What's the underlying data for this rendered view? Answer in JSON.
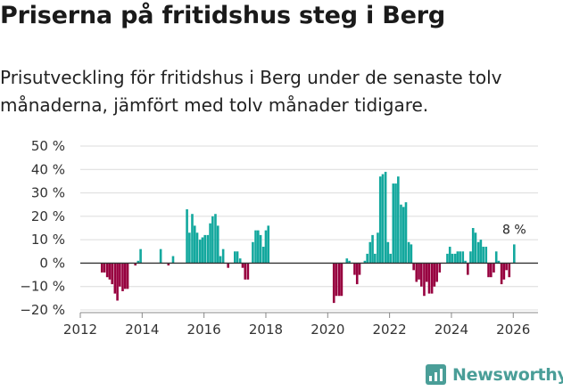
{
  "header": {
    "title": "Priserna på fritidshus steg i Berg",
    "subtitle": "Prisutveckling för fritidshus i Berg under de senaste tolv månaderna, jämfört med tolv månader tidigare."
  },
  "brand": {
    "name": "Newsworthy",
    "icon": "newsworthy-logo-icon",
    "color": "#4a9e98"
  },
  "chart_data": {
    "type": "bar",
    "title": "Priserna på fritidshus steg i Berg",
    "xlabel": "",
    "ylabel": "",
    "ylim": [
      -20,
      50
    ],
    "xlim": [
      2012,
      2026.8
    ],
    "y_ticks": [
      {
        "value": -20,
        "label": "−20 %"
      },
      {
        "value": -10,
        "label": "−10 %"
      },
      {
        "value": 0,
        "label": "0 %"
      },
      {
        "value": 10,
        "label": "10 %"
      },
      {
        "value": 20,
        "label": "20 %"
      },
      {
        "value": 30,
        "label": "30 %"
      },
      {
        "value": 40,
        "label": "40 %"
      },
      {
        "value": 50,
        "label": "50 %"
      }
    ],
    "x_ticks": [
      {
        "value": 2012,
        "label": "2012"
      },
      {
        "value": 2014,
        "label": "2014"
      },
      {
        "value": 2016,
        "label": "2016"
      },
      {
        "value": 2018,
        "label": "2018"
      },
      {
        "value": 2020,
        "label": "2020"
      },
      {
        "value": 2022,
        "label": "2022"
      },
      {
        "value": 2024,
        "label": "2024"
      },
      {
        "value": 2026,
        "label": "2026"
      }
    ],
    "colors": {
      "positive": "#13a89e",
      "negative": "#97003f",
      "zero_line": "#333333"
    },
    "last_value_label": "8 %",
    "grid": true,
    "series": [
      {
        "name": "Prisutveckling",
        "points": [
          {
            "x": 2012.7,
            "y": -4
          },
          {
            "x": 2012.78,
            "y": -4
          },
          {
            "x": 2012.87,
            "y": -6
          },
          {
            "x": 2012.95,
            "y": -7
          },
          {
            "x": 2013.03,
            "y": -9
          },
          {
            "x": 2013.12,
            "y": -13
          },
          {
            "x": 2013.2,
            "y": -16
          },
          {
            "x": 2013.28,
            "y": -10
          },
          {
            "x": 2013.37,
            "y": -12
          },
          {
            "x": 2013.45,
            "y": -11
          },
          {
            "x": 2013.53,
            "y": -11
          },
          {
            "x": 2013.78,
            "y": -1
          },
          {
            "x": 2013.87,
            "y": 1
          },
          {
            "x": 2013.95,
            "y": 6
          },
          {
            "x": 2014.6,
            "y": 6
          },
          {
            "x": 2014.85,
            "y": -1
          },
          {
            "x": 2015.0,
            "y": 3
          },
          {
            "x": 2015.45,
            "y": 23
          },
          {
            "x": 2015.53,
            "y": 13
          },
          {
            "x": 2015.62,
            "y": 21
          },
          {
            "x": 2015.7,
            "y": 16
          },
          {
            "x": 2015.78,
            "y": 13
          },
          {
            "x": 2015.87,
            "y": 10
          },
          {
            "x": 2015.95,
            "y": 11
          },
          {
            "x": 2016.03,
            "y": 12
          },
          {
            "x": 2016.12,
            "y": 12
          },
          {
            "x": 2016.2,
            "y": 17
          },
          {
            "x": 2016.28,
            "y": 20
          },
          {
            "x": 2016.37,
            "y": 21
          },
          {
            "x": 2016.45,
            "y": 16
          },
          {
            "x": 2016.53,
            "y": 3
          },
          {
            "x": 2016.62,
            "y": 6
          },
          {
            "x": 2016.78,
            "y": -2
          },
          {
            "x": 2017.0,
            "y": 5
          },
          {
            "x": 2017.08,
            "y": 5
          },
          {
            "x": 2017.17,
            "y": 2
          },
          {
            "x": 2017.25,
            "y": -2
          },
          {
            "x": 2017.33,
            "y": -7
          },
          {
            "x": 2017.42,
            "y": -7
          },
          {
            "x": 2017.58,
            "y": 9
          },
          {
            "x": 2017.67,
            "y": 14
          },
          {
            "x": 2017.75,
            "y": 14
          },
          {
            "x": 2017.83,
            "y": 12
          },
          {
            "x": 2017.92,
            "y": 7
          },
          {
            "x": 2018.0,
            "y": 14
          },
          {
            "x": 2018.08,
            "y": 16
          },
          {
            "x": 2020.2,
            "y": -17
          },
          {
            "x": 2020.28,
            "y": -14
          },
          {
            "x": 2020.37,
            "y": -14
          },
          {
            "x": 2020.45,
            "y": -14
          },
          {
            "x": 2020.62,
            "y": 2
          },
          {
            "x": 2020.7,
            "y": 1
          },
          {
            "x": 2020.87,
            "y": -5
          },
          {
            "x": 2020.95,
            "y": -9
          },
          {
            "x": 2021.03,
            "y": -5
          },
          {
            "x": 2021.2,
            "y": 1
          },
          {
            "x": 2021.28,
            "y": 4
          },
          {
            "x": 2021.37,
            "y": 9
          },
          {
            "x": 2021.45,
            "y": 12
          },
          {
            "x": 2021.53,
            "y": 4
          },
          {
            "x": 2021.62,
            "y": 13
          },
          {
            "x": 2021.7,
            "y": 37
          },
          {
            "x": 2021.78,
            "y": 38
          },
          {
            "x": 2021.87,
            "y": 39
          },
          {
            "x": 2021.95,
            "y": 9
          },
          {
            "x": 2022.03,
            "y": 4
          },
          {
            "x": 2022.12,
            "y": 34
          },
          {
            "x": 2022.2,
            "y": 34
          },
          {
            "x": 2022.28,
            "y": 37
          },
          {
            "x": 2022.37,
            "y": 25
          },
          {
            "x": 2022.45,
            "y": 24
          },
          {
            "x": 2022.53,
            "y": 26
          },
          {
            "x": 2022.62,
            "y": 9
          },
          {
            "x": 2022.7,
            "y": 8
          },
          {
            "x": 2022.78,
            "y": -3
          },
          {
            "x": 2022.87,
            "y": -8
          },
          {
            "x": 2022.95,
            "y": -7
          },
          {
            "x": 2023.03,
            "y": -10
          },
          {
            "x": 2023.12,
            "y": -14
          },
          {
            "x": 2023.2,
            "y": -8
          },
          {
            "x": 2023.28,
            "y": -13
          },
          {
            "x": 2023.37,
            "y": -13
          },
          {
            "x": 2023.45,
            "y": -10
          },
          {
            "x": 2023.53,
            "y": -8
          },
          {
            "x": 2023.62,
            "y": -4
          },
          {
            "x": 2023.87,
            "y": 4
          },
          {
            "x": 2023.95,
            "y": 7
          },
          {
            "x": 2024.03,
            "y": 4
          },
          {
            "x": 2024.12,
            "y": 4
          },
          {
            "x": 2024.2,
            "y": 5
          },
          {
            "x": 2024.28,
            "y": 5
          },
          {
            "x": 2024.37,
            "y": 5
          },
          {
            "x": 2024.45,
            "y": 1
          },
          {
            "x": 2024.53,
            "y": -5
          },
          {
            "x": 2024.62,
            "y": 5
          },
          {
            "x": 2024.7,
            "y": 15
          },
          {
            "x": 2024.78,
            "y": 13
          },
          {
            "x": 2024.87,
            "y": 9
          },
          {
            "x": 2024.95,
            "y": 10
          },
          {
            "x": 2025.03,
            "y": 7
          },
          {
            "x": 2025.12,
            "y": 7
          },
          {
            "x": 2025.2,
            "y": -6
          },
          {
            "x": 2025.28,
            "y": -6
          },
          {
            "x": 2025.37,
            "y": -4
          },
          {
            "x": 2025.45,
            "y": 5
          },
          {
            "x": 2025.53,
            "y": 1
          },
          {
            "x": 2025.62,
            "y": -9
          },
          {
            "x": 2025.7,
            "y": -7
          },
          {
            "x": 2025.78,
            "y": -3
          },
          {
            "x": 2025.87,
            "y": -6
          },
          {
            "x": 2026.03,
            "y": 8
          }
        ]
      }
    ]
  }
}
